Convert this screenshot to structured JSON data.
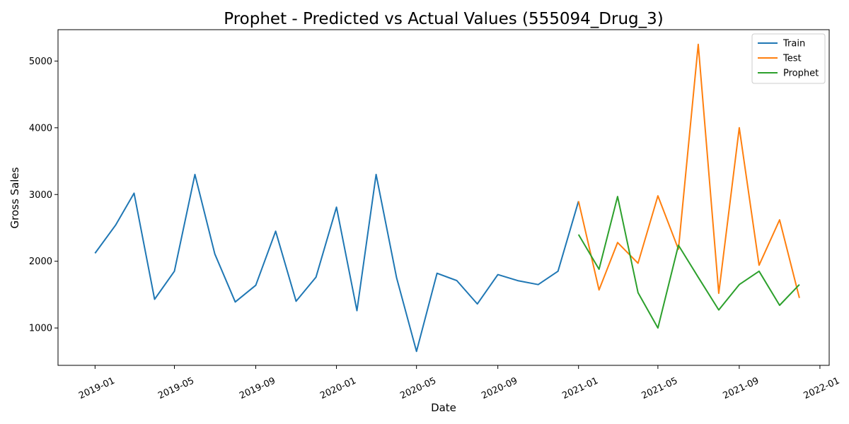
{
  "chart_data": {
    "type": "line",
    "title": "Prophet - Predicted vs Actual Values (555094_Drug_3)",
    "xlabel": "Date",
    "ylabel": "Gross Sales",
    "x_range": [
      "2018-11-06",
      "2022-01-15"
    ],
    "ylim": [
      440,
      5470
    ],
    "x_ticks": [
      "2019-01",
      "2019-05",
      "2019-09",
      "2020-01",
      "2020-05",
      "2020-09",
      "2021-01",
      "2021-05",
      "2021-09",
      "2022-01"
    ],
    "y_ticks": [
      1000,
      2000,
      3000,
      4000,
      5000
    ],
    "grid": false,
    "legend_position": "top-right",
    "series": [
      {
        "name": "Train",
        "color": "#1f77b4",
        "x": [
          "2019-01",
          "2019-02",
          "2019-03",
          "2019-04",
          "2019-05",
          "2019-06",
          "2019-07",
          "2019-08",
          "2019-09",
          "2019-10",
          "2019-11",
          "2019-12",
          "2020-01",
          "2020-02",
          "2020-03",
          "2020-04",
          "2020-05",
          "2020-06",
          "2020-07",
          "2020-08",
          "2020-09",
          "2020-10",
          "2020-11",
          "2020-12",
          "2021-01"
        ],
        "y": [
          2120,
          2540,
          3020,
          1430,
          1850,
          3300,
          2110,
          1390,
          1640,
          2450,
          1400,
          1760,
          2810,
          1260,
          3300,
          1750,
          650,
          1820,
          1710,
          1360,
          1800,
          1710,
          1650,
          1850,
          2900
        ]
      },
      {
        "name": "Test",
        "color": "#ff7f0e",
        "x": [
          "2021-01",
          "2021-02",
          "2021-03",
          "2021-04",
          "2021-05",
          "2021-06",
          "2021-07",
          "2021-08",
          "2021-09",
          "2021-10",
          "2021-11",
          "2021-12"
        ],
        "y": [
          2900,
          1570,
          2280,
          1970,
          2980,
          2180,
          5250,
          1520,
          4000,
          1940,
          2620,
          1450
        ]
      },
      {
        "name": "Prophet",
        "color": "#2ca02c",
        "x": [
          "2021-01",
          "2021-02",
          "2021-03",
          "2021-04",
          "2021-05",
          "2021-06",
          "2021-07",
          "2021-08",
          "2021-09",
          "2021-10",
          "2021-11",
          "2021-12"
        ],
        "y": [
          2400,
          1880,
          2970,
          1530,
          1000,
          2240,
          1760,
          1270,
          1650,
          1850,
          1340,
          1650
        ]
      }
    ]
  }
}
